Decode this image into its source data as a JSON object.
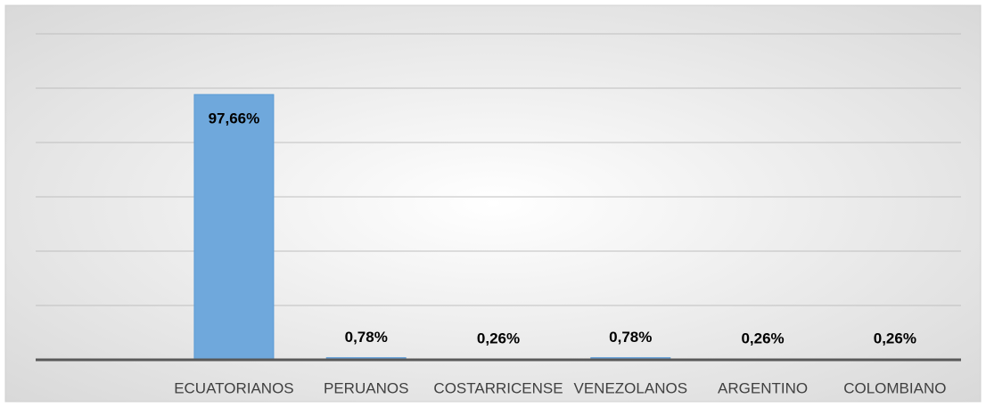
{
  "chart_data": {
    "type": "bar",
    "categories": [
      null,
      "ECUATORIANOS",
      "PERUANOS",
      "COSTARRICENSE",
      "VENEZOLANOS",
      "ARGENTINO",
      "COLOMBIANO"
    ],
    "values": [
      null,
      97.66,
      0.78,
      0.26,
      0.78,
      0.26,
      0.26
    ],
    "value_labels": [
      null,
      "97,66%",
      "0,78%",
      "0,26%",
      "0,78%",
      "0,26%",
      "0,26%"
    ],
    "color": "#6fa8dc",
    "ylim": [
      0,
      120
    ],
    "yticks": [
      0,
      20,
      40,
      60,
      80,
      100,
      120
    ],
    "grid": true
  }
}
